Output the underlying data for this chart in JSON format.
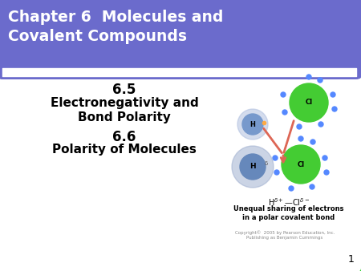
{
  "title": "Chapter 6  Molecules and\nCovalent Compounds",
  "title_bg": "#6b6bcc",
  "title_text_color": "#ffffff",
  "slide_bg": "#ffffff",
  "border_color": "#22cc22",
  "slide_number": "1",
  "body_lines": [
    "6.5",
    "Electronegativity and\nBond Polarity",
    "6.6",
    "Polarity of Molecules"
  ],
  "copyright": "Copyright©  2005 by Pearson Education, Inc.\nPublishing as Benjamin Cummings",
  "caption_text": "Unequal sharing of electrons\nin a polar covalent bond",
  "dot_color": "#5588ff",
  "cl_color": "#44cc33",
  "h_top_color": "#7799cc",
  "h_bot_color": "#6688bb",
  "arrow_color": "#dd6655",
  "white": "#ffffff",
  "grey_bg": "#cccccc"
}
